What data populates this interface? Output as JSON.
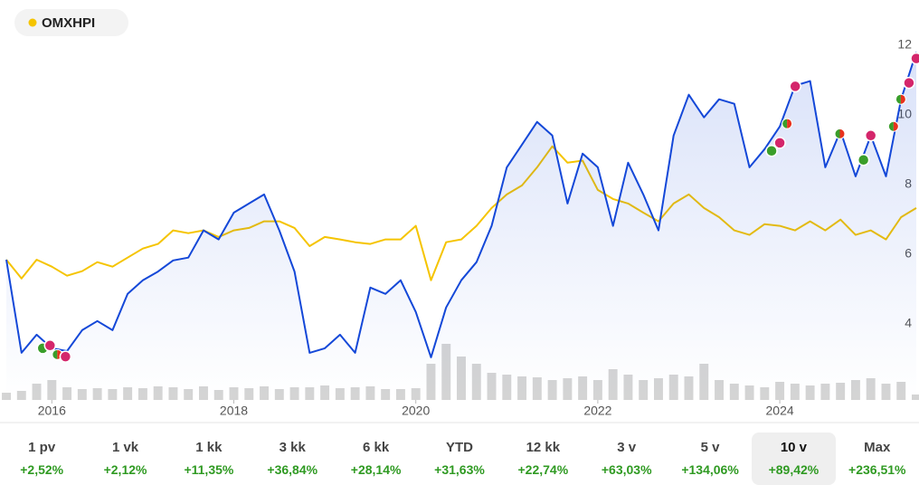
{
  "chart_data": {
    "type": "line",
    "legend": {
      "position": "upper left"
    },
    "x": [
      2015.5,
      2015.6667,
      2015.8333,
      2016.0,
      2016.1667,
      2016.3333,
      2016.5,
      2016.6667,
      2016.8333,
      2017.0,
      2017.1667,
      2017.3333,
      2017.5,
      2017.6667,
      2017.8333,
      2018.0,
      2018.1667,
      2018.3333,
      2018.5,
      2018.6667,
      2018.8333,
      2019.0,
      2019.1667,
      2019.3333,
      2019.5,
      2019.6667,
      2019.8333,
      2020.0,
      2020.1667,
      2020.3333,
      2020.5,
      2020.6667,
      2020.8333,
      2021.0,
      2021.1667,
      2021.3333,
      2021.5,
      2021.6667,
      2021.8333,
      2022.0,
      2022.1667,
      2022.3333,
      2022.5,
      2022.6667,
      2022.8333,
      2023.0,
      2023.1667,
      2023.3333,
      2023.5,
      2023.6667,
      2023.8333,
      2024.0,
      2024.1667,
      2024.3333,
      2024.5,
      2024.6667,
      2024.8333,
      2025.0,
      2025.1667,
      2025.3333,
      2025.5
    ],
    "xlim": [
      2015.48,
      2025.52
    ],
    "xticks": [
      2016,
      2018,
      2020,
      2022,
      2024
    ],
    "ylim": [
      2,
      12.3
    ],
    "yticks": [
      4,
      6,
      8,
      10,
      12
    ],
    "series": [
      {
        "color": "#1448d8",
        "fill": true,
        "values": [
          5.84,
          3.17,
          3.69,
          3.3,
          3.22,
          3.82,
          4.08,
          3.82,
          4.86,
          5.25,
          5.5,
          5.82,
          5.9,
          6.68,
          6.42,
          7.19,
          7.45,
          7.71,
          6.68,
          5.5,
          3.17,
          3.3,
          3.69,
          3.17,
          5.04,
          4.86,
          5.25,
          4.34,
          3.04,
          4.47,
          5.25,
          5.77,
          6.81,
          8.49,
          9.14,
          9.79,
          9.4,
          7.45,
          8.88,
          8.49,
          6.81,
          8.62,
          7.71,
          6.68,
          9.4,
          10.57,
          9.92,
          10.44,
          10.31,
          8.49,
          9.01,
          9.66,
          10.83,
          10.96,
          8.49,
          9.53,
          8.23,
          9.4,
          8.23,
          10.44,
          11.79
        ]
      },
      {
        "name": "OMXHPI",
        "color": "#f5c400",
        "fill": false,
        "values": [
          5.84,
          5.3,
          5.84,
          5.64,
          5.38,
          5.51,
          5.77,
          5.64,
          5.9,
          6.16,
          6.29,
          6.68,
          6.6,
          6.68,
          6.49,
          6.68,
          6.75,
          6.94,
          6.94,
          6.75,
          6.23,
          6.49,
          6.42,
          6.34,
          6.29,
          6.42,
          6.42,
          6.81,
          5.25,
          6.34,
          6.42,
          6.81,
          7.32,
          7.71,
          7.97,
          8.49,
          9.09,
          8.62,
          8.68,
          7.84,
          7.58,
          7.45,
          7.19,
          6.94,
          7.45,
          7.71,
          7.32,
          7.06,
          6.68,
          6.55,
          6.86,
          6.81,
          6.68,
          6.94,
          6.68,
          6.99,
          6.55,
          6.68,
          6.42,
          7.06,
          7.32
        ]
      }
    ],
    "volume": {
      "color": "#d4d4d4",
      "lim": [
        0,
        80
      ],
      "values": [
        8,
        10,
        18,
        22,
        14,
        12,
        13,
        12,
        14,
        13,
        15,
        14,
        12,
        15,
        11,
        14,
        13,
        15,
        12,
        14,
        14,
        16,
        13,
        14,
        15,
        12,
        12,
        13,
        40,
        62,
        48,
        40,
        30,
        28,
        26,
        25,
        22,
        24,
        26,
        22,
        34,
        28,
        22,
        24,
        28,
        26,
        40,
        22,
        18,
        16,
        14,
        20,
        18,
        16,
        18,
        19,
        22,
        24,
        18,
        20,
        6
      ]
    },
    "markers": [
      {
        "x": 2015.9,
        "y": 3.3,
        "colors": [
          "#3a9e2a"
        ]
      },
      {
        "x": 2015.98,
        "y": 3.38,
        "colors": [
          "#d4266b"
        ]
      },
      {
        "x": 2016.06,
        "y": 3.12,
        "colors": [
          "#3a9e2a",
          "#e8321e"
        ]
      },
      {
        "x": 2016.15,
        "y": 3.06,
        "colors": [
          "#d4266b"
        ]
      },
      {
        "x": 2023.91,
        "y": 8.96,
        "colors": [
          "#3a9e2a"
        ]
      },
      {
        "x": 2024.0,
        "y": 9.19,
        "colors": [
          "#d4266b"
        ]
      },
      {
        "x": 2024.08,
        "y": 9.74,
        "colors": [
          "#3a9e2a",
          "#e8321e"
        ]
      },
      {
        "x": 2024.17,
        "y": 10.81,
        "colors": [
          "#d4266b"
        ]
      },
      {
        "x": 2024.66,
        "y": 9.45,
        "colors": [
          "#3a9e2a",
          "#e8321e"
        ]
      },
      {
        "x": 2024.92,
        "y": 8.7,
        "colors": [
          "#3a9e2a"
        ]
      },
      {
        "x": 2025.0,
        "y": 9.4,
        "colors": [
          "#d4266b"
        ]
      },
      {
        "x": 2025.25,
        "y": 9.66,
        "colors": [
          "#3a9e2a",
          "#e8321e"
        ]
      },
      {
        "x": 2025.33,
        "y": 10.44,
        "colors": [
          "#3a9e2a",
          "#e8321e"
        ]
      },
      {
        "x": 2025.42,
        "y": 10.91,
        "colors": [
          "#d4266b"
        ]
      },
      {
        "x": 2025.5,
        "y": 11.61,
        "colors": [
          "#d4266b"
        ]
      }
    ]
  },
  "periods": [
    {
      "label": "1 pv",
      "change": "+2,52%"
    },
    {
      "label": "1 vk",
      "change": "+2,12%"
    },
    {
      "label": "1 kk",
      "change": "+11,35%"
    },
    {
      "label": "3 kk",
      "change": "+36,84%"
    },
    {
      "label": "6 kk",
      "change": "+28,14%"
    },
    {
      "label": "YTD",
      "change": "+31,63%"
    },
    {
      "label": "12 kk",
      "change": "+22,74%"
    },
    {
      "label": "3 v",
      "change": "+63,03%"
    },
    {
      "label": "5 v",
      "change": "+134,06%"
    },
    {
      "label": "10 v",
      "change": "+89,42%"
    },
    {
      "label": "Max",
      "change": "+236,51%"
    }
  ],
  "selected_period": 9
}
